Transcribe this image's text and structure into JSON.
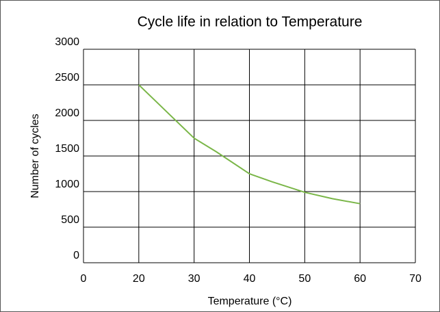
{
  "chart_data": {
    "type": "line",
    "title": "Cycle life in relation to Temperature",
    "x_label": "Temperature (°C)",
    "y_label": "Number of cycles",
    "x": [
      20,
      24,
      30,
      34,
      40,
      44,
      50,
      55,
      60
    ],
    "series": [
      {
        "name": "Cycle life",
        "color": "#7ab648",
        "values": [
          2500,
          2200,
          1750,
          1560,
          1250,
          1140,
          990,
          900,
          830
        ]
      }
    ],
    "xlim": [
      0,
      70
    ],
    "xticks": [
      0,
      20,
      30,
      40,
      50,
      60,
      70
    ],
    "ylim": [
      0,
      3000
    ],
    "yticks": [
      0,
      500,
      1000,
      1500,
      2000,
      2500,
      3000
    ],
    "grid": true
  }
}
